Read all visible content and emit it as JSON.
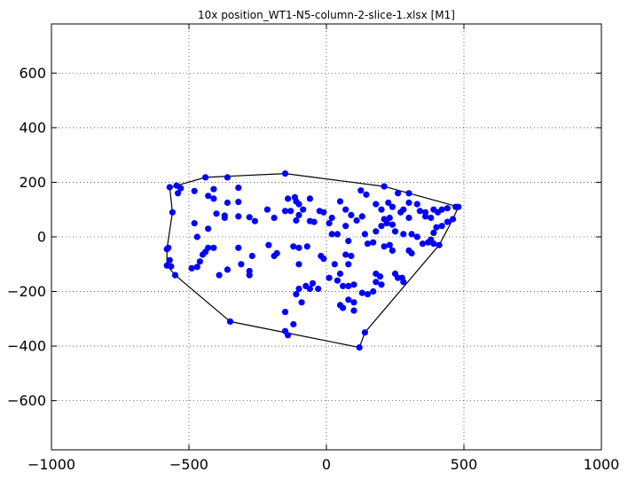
{
  "chart_data": {
    "type": "scatter",
    "title": "10x position_WT1-N5-column-2-slice-1.xlsx   [M1]",
    "xlabel": "",
    "ylabel": "",
    "xlim": [
      -1000,
      1000
    ],
    "ylim": [
      -780,
      780
    ],
    "xticks": [
      -1000,
      -500,
      0,
      500,
      1000
    ],
    "yticks": [
      -600,
      -400,
      -200,
      0,
      200,
      400,
      600
    ],
    "xtick_labels": [
      "−1000",
      "−500",
      "0",
      "500",
      "1000"
    ],
    "ytick_labels": [
      "−600",
      "−400",
      "−200",
      "0",
      "200",
      "400",
      "600"
    ],
    "grid": true,
    "marker_color": "#0000ff",
    "hull_color": "#000000",
    "points": [
      [
        -150,
        232
      ],
      [
        -440,
        218
      ],
      [
        -360,
        218
      ],
      [
        -570,
        182
      ],
      [
        -545,
        188
      ],
      [
        -530,
        178
      ],
      [
        -540,
        160
      ],
      [
        -480,
        168
      ],
      [
        -430,
        150
      ],
      [
        -410,
        175
      ],
      [
        -410,
        140
      ],
      [
        -320,
        180
      ],
      [
        -360,
        125
      ],
      [
        -320,
        128
      ],
      [
        -400,
        85
      ],
      [
        -370,
        70
      ],
      [
        -370,
        78
      ],
      [
        -320,
        75
      ],
      [
        -280,
        72
      ],
      [
        -260,
        58
      ],
      [
        -215,
        100
      ],
      [
        -190,
        70
      ],
      [
        -150,
        95
      ],
      [
        -140,
        140
      ],
      [
        -130,
        95
      ],
      [
        -115,
        145
      ],
      [
        -110,
        130
      ],
      [
        -100,
        120
      ],
      [
        -100,
        80
      ],
      [
        -85,
        100
      ],
      [
        -60,
        140
      ],
      [
        -45,
        55
      ],
      [
        -60,
        58
      ],
      [
        -110,
        60
      ],
      [
        -25,
        95
      ],
      [
        -10,
        90
      ],
      [
        20,
        70
      ],
      [
        50,
        130
      ],
      [
        70,
        100
      ],
      [
        90,
        80
      ],
      [
        110,
        60
      ],
      [
        125,
        170
      ],
      [
        130,
        75
      ],
      [
        145,
        155
      ],
      [
        210,
        185
      ],
      [
        180,
        120
      ],
      [
        200,
        100
      ],
      [
        225,
        125
      ],
      [
        260,
        160
      ],
      [
        300,
        160
      ],
      [
        300,
        125
      ],
      [
        240,
        110
      ],
      [
        270,
        90
      ],
      [
        280,
        100
      ],
      [
        300,
        70
      ],
      [
        330,
        120
      ],
      [
        340,
        95
      ],
      [
        360,
        90
      ],
      [
        360,
        75
      ],
      [
        380,
        70
      ],
      [
        390,
        100
      ],
      [
        405,
        90
      ],
      [
        420,
        100
      ],
      [
        440,
        105
      ],
      [
        470,
        110
      ],
      [
        480,
        110
      ],
      [
        460,
        65
      ],
      [
        440,
        55
      ],
      [
        420,
        40
      ],
      [
        400,
        35
      ],
      [
        390,
        15
      ],
      [
        380,
        -10
      ],
      [
        370,
        -20
      ],
      [
        390,
        -25
      ],
      [
        410,
        -30
      ],
      [
        350,
        -25
      ],
      [
        330,
        0
      ],
      [
        310,
        10
      ],
      [
        280,
        10
      ],
      [
        250,
        20
      ],
      [
        240,
        45
      ],
      [
        220,
        50
      ],
      [
        210,
        65
      ],
      [
        230,
        70
      ],
      [
        200,
        40
      ],
      [
        180,
        20
      ],
      [
        170,
        -20
      ],
      [
        230,
        -30
      ],
      [
        240,
        -50
      ],
      [
        210,
        -35
      ],
      [
        300,
        -50
      ],
      [
        310,
        -60
      ],
      [
        195,
        -145
      ],
      [
        180,
        -135
      ],
      [
        200,
        -175
      ],
      [
        180,
        -165
      ],
      [
        170,
        -200
      ],
      [
        150,
        -210
      ],
      [
        130,
        -205
      ],
      [
        250,
        -135
      ],
      [
        260,
        -150
      ],
      [
        275,
        -150
      ],
      [
        280,
        -165
      ],
      [
        140,
        -350
      ],
      [
        120,
        -405
      ],
      [
        100,
        -270
      ],
      [
        100,
        -240
      ],
      [
        80,
        -230
      ],
      [
        60,
        -260
      ],
      [
        50,
        -250
      ],
      [
        100,
        -175
      ],
      [
        80,
        -180
      ],
      [
        60,
        -180
      ],
      [
        40,
        -160
      ],
      [
        50,
        -135
      ],
      [
        80,
        -100
      ],
      [
        90,
        -70
      ],
      [
        70,
        -65
      ],
      [
        30,
        -100
      ],
      [
        10,
        -150
      ],
      [
        -30,
        -190
      ],
      [
        -50,
        -170
      ],
      [
        -60,
        -190
      ],
      [
        -75,
        -180
      ],
      [
        -100,
        -190
      ],
      [
        -110,
        -210
      ],
      [
        -90,
        -240
      ],
      [
        -120,
        -320
      ],
      [
        -140,
        -360
      ],
      [
        -150,
        -345
      ],
      [
        -150,
        -275
      ],
      [
        -100,
        -100
      ],
      [
        -120,
        -35
      ],
      [
        -100,
        -40
      ],
      [
        -70,
        -35
      ],
      [
        -180,
        -60
      ],
      [
        -190,
        -70
      ],
      [
        -210,
        -30
      ],
      [
        -270,
        -70
      ],
      [
        -280,
        -140
      ],
      [
        -280,
        -125
      ],
      [
        -310,
        -100
      ],
      [
        -320,
        -40
      ],
      [
        -350,
        -310
      ],
      [
        -360,
        -120
      ],
      [
        -390,
        -140
      ],
      [
        -410,
        -40
      ],
      [
        -430,
        -40
      ],
      [
        -440,
        -55
      ],
      [
        -450,
        -65
      ],
      [
        -460,
        -90
      ],
      [
        -470,
        -110
      ],
      [
        -490,
        -115
      ],
      [
        -430,
        30
      ],
      [
        -470,
        0
      ],
      [
        -480,
        50
      ],
      [
        -550,
        -140
      ],
      [
        -565,
        -108
      ],
      [
        -570,
        -85
      ],
      [
        -580,
        -105
      ],
      [
        -580,
        -45
      ],
      [
        -575,
        -40
      ],
      [
        -560,
        90
      ],
      [
        -10,
        -80
      ],
      [
        -20,
        -70
      ],
      [
        10,
        50
      ],
      [
        20,
        10
      ],
      [
        40,
        10
      ],
      [
        70,
        40
      ],
      [
        80,
        -15
      ],
      [
        140,
        10
      ],
      [
        150,
        -25
      ]
    ],
    "hull": [
      [
        -150,
        232
      ],
      [
        210,
        185
      ],
      [
        480,
        110
      ],
      [
        460,
        65
      ],
      [
        410,
        -30
      ],
      [
        140,
        -350
      ],
      [
        120,
        -405
      ],
      [
        -350,
        -310
      ],
      [
        -550,
        -140
      ],
      [
        -580,
        -105
      ],
      [
        -580,
        -45
      ],
      [
        -560,
        90
      ],
      [
        -570,
        182
      ],
      [
        -545,
        188
      ],
      [
        -440,
        218
      ]
    ]
  }
}
